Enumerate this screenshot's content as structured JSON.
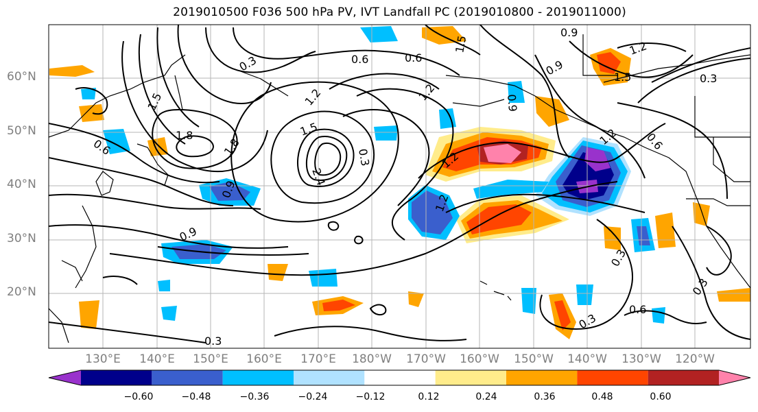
{
  "title": "2019010500 F036 500 hPa PV, IVT Landfall PC (2019010800 - 2019011000)",
  "lat_labels": [
    "60°N",
    "50°N",
    "40°N",
    "30°N",
    "20°N"
  ],
  "lon_labels": [
    "130°E",
    "140°E",
    "150°E",
    "160°E",
    "170°E",
    "180°W",
    "170°W",
    "160°W",
    "150°W",
    "140°W",
    "130°W",
    "120°W"
  ],
  "colorbar": {
    "ticks": [
      "−0.60",
      "−0.48",
      "−0.36",
      "−0.24",
      "−0.12",
      "0.12",
      "0.24",
      "0.36",
      "0.48",
      "0.60"
    ],
    "colors": [
      "#9932cc",
      "#00008b",
      "#3a5fcd",
      "#00bfff",
      "#b0e2ff",
      "#ffffff",
      "#ffec8b",
      "#ffa500",
      "#ff4500",
      "#b22222",
      "#ff82ab"
    ]
  },
  "contour_labels": [
    "0.3",
    "0.6",
    "0.9",
    "1.2",
    "1.5",
    "1.8",
    "2.4",
    "0.3",
    "0.6",
    "0.9",
    "1.2",
    "1.5",
    "1.8",
    "0.3",
    "0.6",
    "0.9",
    "1.2",
    "1.5",
    "0.3",
    "0.6",
    "0.9",
    "1.2",
    "0.3",
    "0.6",
    "1.2",
    "0.9",
    "1.5",
    "1.2",
    "0.3",
    "0.3"
  ]
}
